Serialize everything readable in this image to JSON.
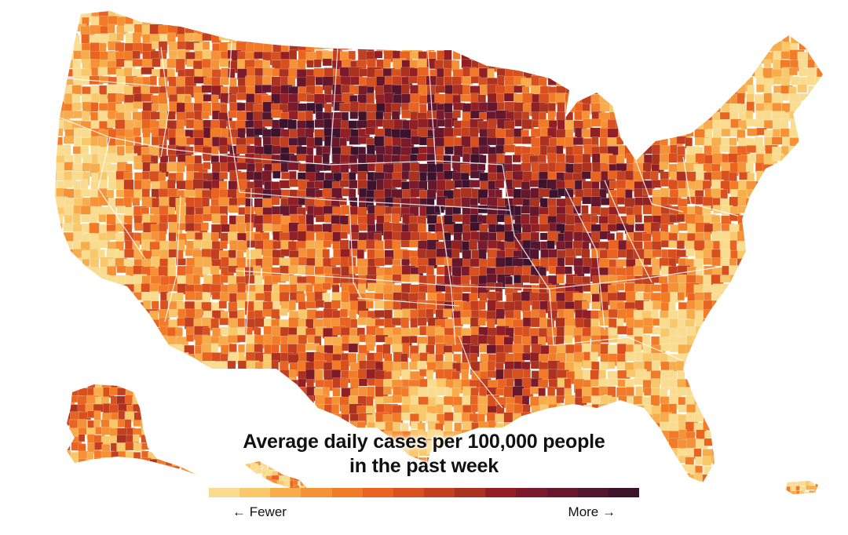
{
  "legend": {
    "title_line1": "Average daily cases per 100,000 people",
    "title_line2": "in the past week",
    "low_label": "← Fewer",
    "high_label": "More →",
    "colors": [
      "#f9dc8f",
      "#f8c86a",
      "#f7ad4c",
      "#f59238",
      "#f27b28",
      "#ea6421",
      "#d9501f",
      "#c2401f",
      "#aa321f",
      "#921f23",
      "#7b1a2a",
      "#66172c",
      "#52152e",
      "#3d122d"
    ]
  },
  "map": {
    "regions": [
      "contiguous-us",
      "alaska",
      "hawaii",
      "puerto-rico"
    ],
    "ocean_color": "#ffffff",
    "border_color": "#ffffff"
  }
}
